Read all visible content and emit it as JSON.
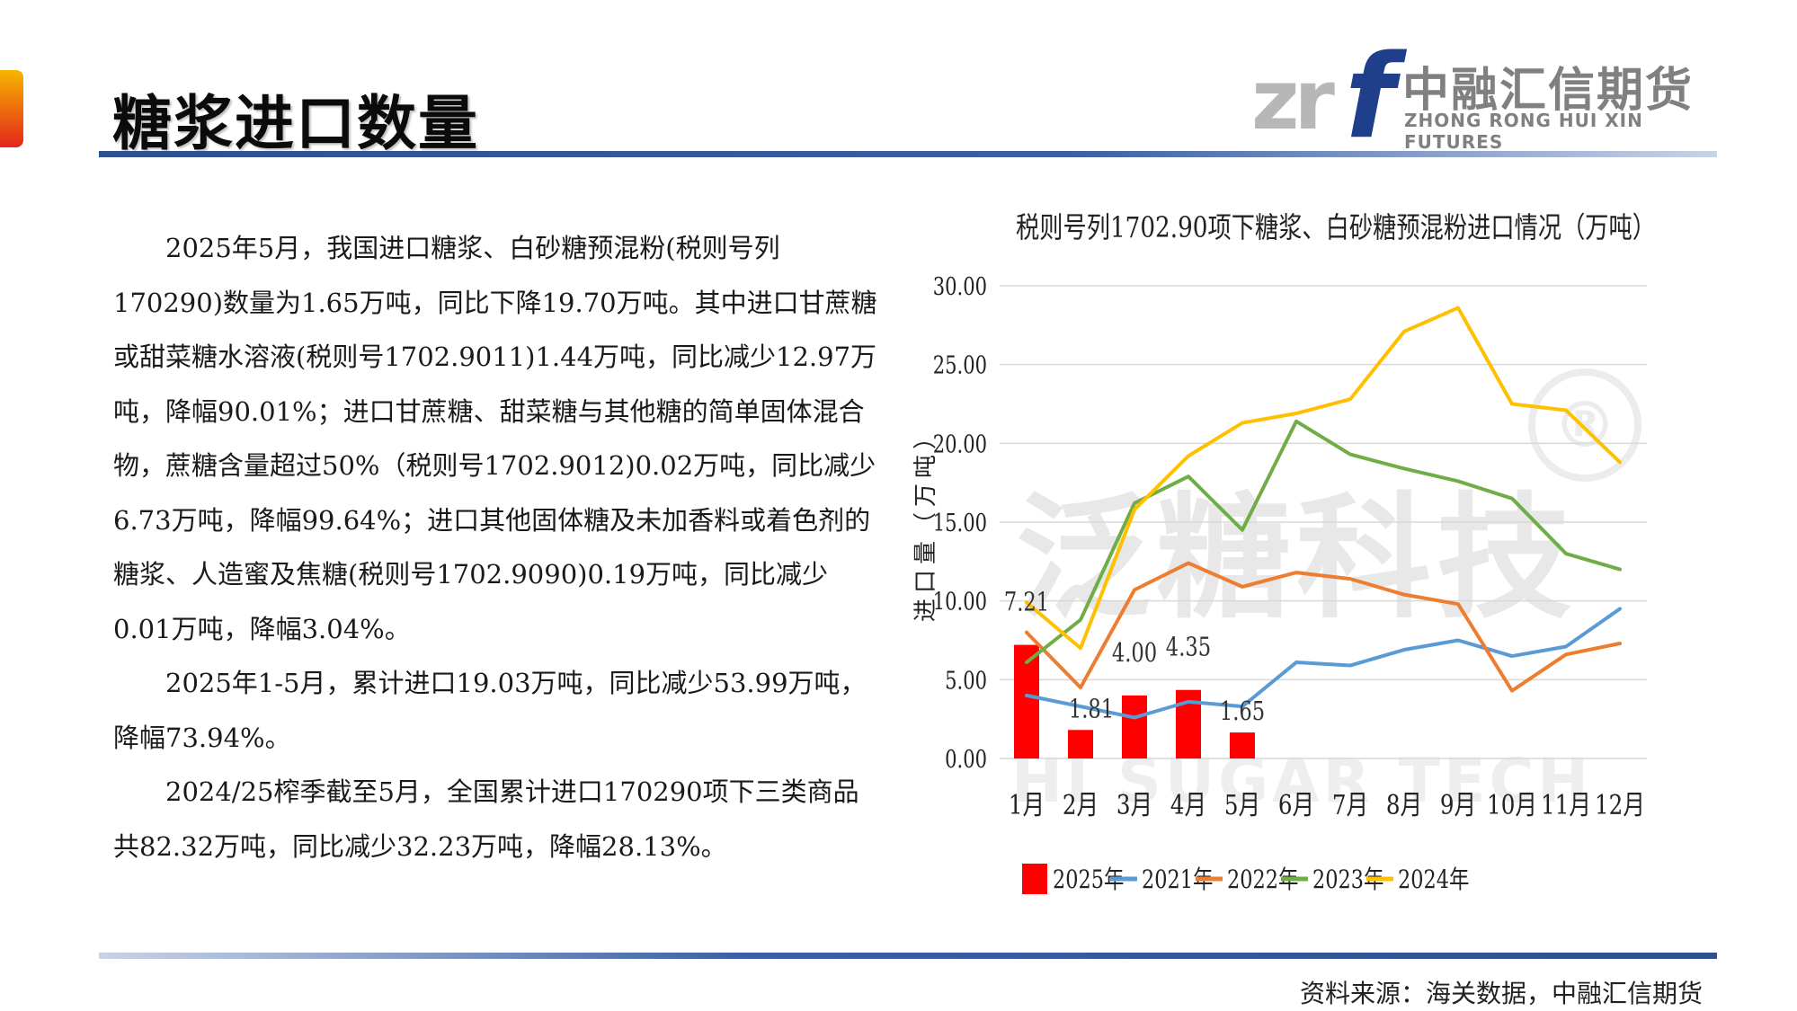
{
  "header": {
    "title": "糖浆进口数量",
    "logo_cn": "中融汇信期货",
    "logo_en": "ZHONG RONG HUI XIN FUTURES",
    "logo_mark_z": "zr",
    "logo_mark_f": "f"
  },
  "paragraphs": [
    "2025年5月，我国进口糖浆、白砂糖预混粉(税则号列170290)数量为1.65万吨，同比下降19.70万吨。其中进口甘蔗糖或甜菜糖水溶液(税则号1702.9011)1.44万吨，同比减少12.97万吨，降幅90.01%；进口甘蔗糖、甜菜糖与其他糖的简单固体混合物，蔗糖含量超过50%（税则号1702.9012)0.02万吨，同比减少6.73万吨，降幅99.64%；进口其他固体糖及未加香料或着色剂的糖浆、人造蜜及焦糖(税则号1702.9090)0.19万吨，同比减少0.01万吨，降幅3.04%。",
    "2025年1-5月，累计进口19.03万吨，同比减少53.99万吨，降幅73.94%。",
    "2024/25榨季截至5月，全国累计进口170290项下三类商品共82.32万吨，同比减少32.23万吨，降幅28.13%。"
  ],
  "watermark": {
    "cn": "泛糖科技",
    "en": "HI SUGAR TECH",
    "r": "®"
  },
  "source": "资料来源：海关数据，中融汇信期货",
  "chart_data": {
    "type": "bar+line",
    "title": "税则号列1702.90项下糖浆、白砂糖预混粉进口情况（万吨）",
    "ylabel": "进口量（万吨）",
    "xlabel": "",
    "ylim": [
      0,
      30
    ],
    "yticks": [
      "0.00",
      "5.00",
      "10.00",
      "15.00",
      "20.00",
      "25.00",
      "30.00"
    ],
    "grid": true,
    "legend_position": "bottom",
    "categories": [
      "1月",
      "2月",
      "3月",
      "4月",
      "5月",
      "6月",
      "7月",
      "8月",
      "9月",
      "10月",
      "11月",
      "12月"
    ],
    "bar_series": {
      "name": "2025年",
      "color": "#ff0000",
      "values": [
        7.21,
        1.81,
        4.0,
        4.35,
        1.65
      ],
      "labels": [
        "7.21",
        "1.81",
        "4.00",
        "4.35",
        "1.65"
      ]
    },
    "series": [
      {
        "name": "2021年",
        "color": "#5b9bd5",
        "values": [
          4.0,
          3.3,
          2.6,
          3.6,
          3.3,
          6.1,
          5.9,
          6.9,
          7.5,
          6.5,
          7.1,
          9.5
        ]
      },
      {
        "name": "2022年",
        "color": "#ed7d31",
        "values": [
          8.0,
          4.5,
          10.7,
          12.4,
          10.9,
          11.8,
          11.4,
          10.4,
          9.8,
          4.3,
          6.6,
          7.3
        ]
      },
      {
        "name": "2023年",
        "color": "#70ad47",
        "values": [
          6.1,
          8.8,
          16.2,
          17.9,
          14.5,
          21.4,
          19.3,
          18.4,
          17.6,
          16.5,
          13.0,
          12.0
        ]
      },
      {
        "name": "2024年",
        "color": "#ffc000",
        "values": [
          9.9,
          7.0,
          15.8,
          19.2,
          21.3,
          21.9,
          22.8,
          27.1,
          28.6,
          22.5,
          22.1,
          18.8
        ]
      }
    ]
  }
}
